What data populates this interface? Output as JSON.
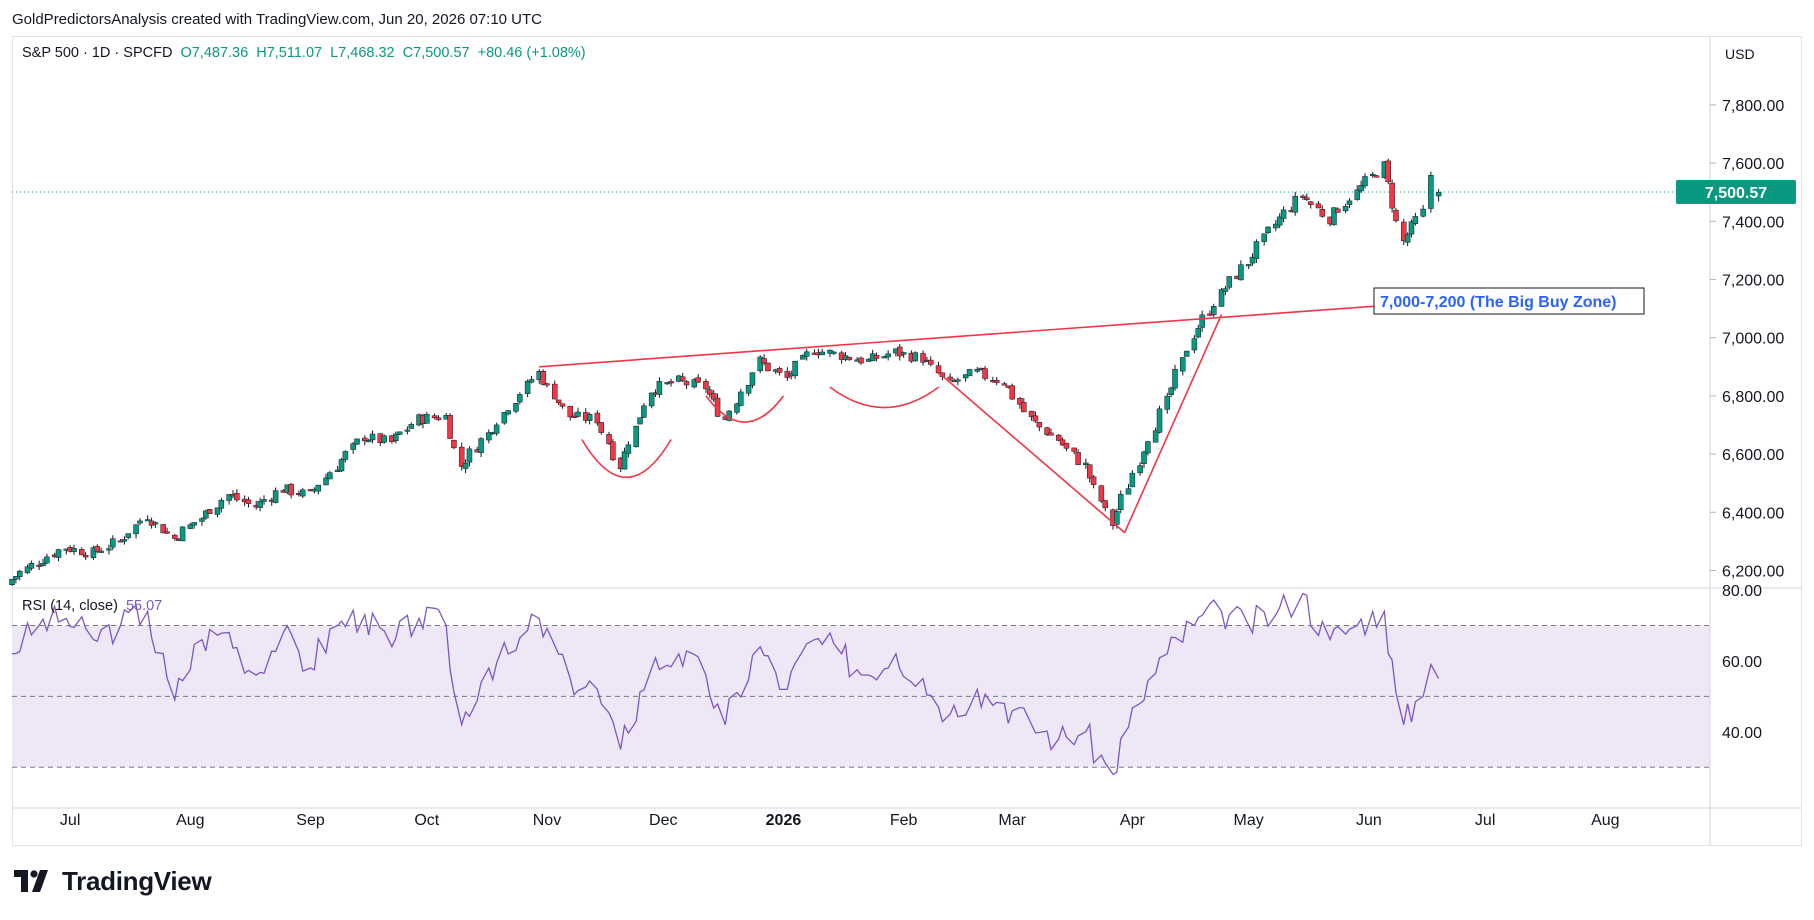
{
  "header": {
    "caption": "GoldPredictorsAnalysis created with TradingView.com, Jun 20, 2026 07:10 UTC"
  },
  "legend": {
    "symbol": "S&P 500 · 1D · SPCFD",
    "open": "O7,487.36",
    "high": "H7,511.07",
    "low": "L7,468.32",
    "close": "C7,500.57",
    "change": "+80.46 (+1.08%)"
  },
  "currency": "USD",
  "rsi_legend": {
    "label": "RSI (14, close)",
    "value": "55.07"
  },
  "brand": {
    "name": "TradingView"
  },
  "colors": {
    "up": "#089981",
    "down": "#f23645",
    "annotation": "#f23645",
    "rsi_line": "#7e57c2",
    "rsi_band": "#ede7f6",
    "zone_text": "#2962ff",
    "last_price_bg": "#089981"
  },
  "chart_data": [
    {
      "type": "candlestick",
      "title": "",
      "ylim": [
        6150,
        7920
      ],
      "yticks": [
        6200,
        6400,
        6600,
        6800,
        7000,
        7200,
        7400,
        7600,
        7800
      ],
      "ytick_labels": [
        "6,200.00",
        "6,400.00",
        "6,600.00",
        "6,800.00",
        "7,000.00",
        "7,200.00",
        "7,400.00",
        "7,600.00",
        "7,800.00"
      ],
      "x_range": [
        "2025-06-16",
        "2026-08-28"
      ],
      "xticks": [
        {
          "date": "2025-07-01",
          "label": "Jul"
        },
        {
          "date": "2025-08-01",
          "label": "Aug"
        },
        {
          "date": "2025-09-01",
          "label": "Sep"
        },
        {
          "date": "2025-10-01",
          "label": "Oct"
        },
        {
          "date": "2025-11-01",
          "label": "Nov"
        },
        {
          "date": "2025-12-01",
          "label": "Dec"
        },
        {
          "date": "2026-01-01",
          "label": "2026"
        },
        {
          "date": "2026-02-01",
          "label": "Feb"
        },
        {
          "date": "2026-03-01",
          "label": "Mar"
        },
        {
          "date": "2026-04-01",
          "label": "Apr"
        },
        {
          "date": "2026-05-01",
          "label": "May"
        },
        {
          "date": "2026-06-01",
          "label": "Jun"
        },
        {
          "date": "2026-07-01",
          "label": "Jul"
        },
        {
          "date": "2026-08-01",
          "label": "Aug"
        }
      ],
      "last_price": 7500.57,
      "last_price_label": "7,500.57",
      "closes": [
        [
          "2025-06-16",
          6170
        ],
        [
          "2025-06-23",
          6230
        ],
        [
          "2025-06-30",
          6280
        ],
        [
          "2025-07-07",
          6260
        ],
        [
          "2025-07-14",
          6300
        ],
        [
          "2025-07-21",
          6390
        ],
        [
          "2025-07-28",
          6310
        ],
        [
          "2025-08-04",
          6380
        ],
        [
          "2025-08-11",
          6460
        ],
        [
          "2025-08-18",
          6420
        ],
        [
          "2025-08-25",
          6480
        ],
        [
          "2025-09-01",
          6460
        ],
        [
          "2025-09-08",
          6560
        ],
        [
          "2025-09-15",
          6660
        ],
        [
          "2025-09-22",
          6640
        ],
        [
          "2025-09-29",
          6720
        ],
        [
          "2025-10-06",
          6730
        ],
        [
          "2025-10-10",
          6560
        ],
        [
          "2025-10-17",
          6670
        ],
        [
          "2025-10-24",
          6790
        ],
        [
          "2025-10-30",
          6880
        ],
        [
          "2025-11-07",
          6730
        ],
        [
          "2025-11-14",
          6720
        ],
        [
          "2025-11-20",
          6560
        ],
        [
          "2025-11-28",
          6820
        ],
        [
          "2025-12-05",
          6850
        ],
        [
          "2025-12-12",
          6830
        ],
        [
          "2025-12-17",
          6720
        ],
        [
          "2025-12-26",
          6920
        ],
        [
          "2026-01-02",
          6860
        ],
        [
          "2026-01-09",
          6960
        ],
        [
          "2026-01-16",
          6940
        ],
        [
          "2026-01-23",
          6920
        ],
        [
          "2026-01-30",
          6950
        ],
        [
          "2026-02-06",
          6930
        ],
        [
          "2026-02-13",
          6840
        ],
        [
          "2026-02-20",
          6880
        ],
        [
          "2026-02-27",
          6850
        ],
        [
          "2026-03-06",
          6720
        ],
        [
          "2026-03-13",
          6650
        ],
        [
          "2026-03-20",
          6560
        ],
        [
          "2026-03-27",
          6360
        ],
        [
          "2026-04-03",
          6580
        ],
        [
          "2026-04-10",
          6780
        ],
        [
          "2026-04-17",
          7010
        ],
        [
          "2026-04-24",
          7150
        ],
        [
          "2026-05-01",
          7260
        ],
        [
          "2026-05-08",
          7390
        ],
        [
          "2026-05-15",
          7490
        ],
        [
          "2026-05-22",
          7410
        ],
        [
          "2026-05-29",
          7500
        ],
        [
          "2026-06-05",
          7590
        ],
        [
          "2026-06-10",
          7330
        ],
        [
          "2026-06-15",
          7430
        ],
        [
          "2026-06-17",
          7560
        ],
        [
          "2026-06-19",
          7500
        ]
      ],
      "annotations": [
        {
          "type": "trendline",
          "from": [
            "2025-10-30",
            6900
          ],
          "to": [
            "2026-06-15",
            7120
          ]
        },
        {
          "type": "trendline",
          "from": [
            "2026-02-10",
            6880
          ],
          "to": [
            "2026-03-30",
            6330
          ]
        },
        {
          "type": "trendline",
          "from": [
            "2026-03-30",
            6330
          ],
          "to": [
            "2026-04-24",
            7080
          ]
        },
        {
          "type": "label",
          "text": "7,000-7,200 (The Big Buy Zone)"
        }
      ]
    },
    {
      "type": "line",
      "title": "RSI (14, close)",
      "ylim": [
        25,
        80
      ],
      "yticks": [
        40,
        60,
        80
      ],
      "ytick_labels": [
        "40.00",
        "60.00",
        "80.00"
      ],
      "bands": [
        30,
        50,
        70
      ],
      "series": [
        {
          "values": [
            [
              "2025-06-16",
              62
            ],
            [
              "2025-06-23",
              70
            ],
            [
              "2025-06-30",
              72
            ],
            [
              "2025-07-07",
              66
            ],
            [
              "2025-07-14",
              70
            ],
            [
              "2025-07-21",
              74
            ],
            [
              "2025-07-28",
              49
            ],
            [
              "2025-08-04",
              66
            ],
            [
              "2025-08-11",
              68
            ],
            [
              "2025-08-18",
              56
            ],
            [
              "2025-08-25",
              68
            ],
            [
              "2025-09-01",
              58
            ],
            [
              "2025-09-08",
              70
            ],
            [
              "2025-09-15",
              73
            ],
            [
              "2025-09-22",
              64
            ],
            [
              "2025-09-29",
              72
            ],
            [
              "2025-10-06",
              70
            ],
            [
              "2025-10-10",
              42
            ],
            [
              "2025-10-17",
              58
            ],
            [
              "2025-10-24",
              63
            ],
            [
              "2025-10-30",
              72
            ],
            [
              "2025-11-07",
              55
            ],
            [
              "2025-11-14",
              52
            ],
            [
              "2025-11-20",
              35
            ],
            [
              "2025-11-28",
              58
            ],
            [
              "2025-12-05",
              62
            ],
            [
              "2025-12-12",
              56
            ],
            [
              "2025-12-17",
              42
            ],
            [
              "2025-12-26",
              64
            ],
            [
              "2026-01-02",
              52
            ],
            [
              "2026-01-09",
              66
            ],
            [
              "2026-01-16",
              62
            ],
            [
              "2026-01-23",
              56
            ],
            [
              "2026-01-30",
              62
            ],
            [
              "2026-02-06",
              55
            ],
            [
              "2026-02-13",
              45
            ],
            [
              "2026-02-20",
              52
            ],
            [
              "2026-02-27",
              48
            ],
            [
              "2026-03-06",
              42
            ],
            [
              "2026-03-13",
              38
            ],
            [
              "2026-03-20",
              40
            ],
            [
              "2026-03-27",
              28
            ],
            [
              "2026-04-03",
              48
            ],
            [
              "2026-04-10",
              62
            ],
            [
              "2026-04-17",
              70
            ],
            [
              "2026-04-24",
              74
            ],
            [
              "2026-05-01",
              70
            ],
            [
              "2026-05-08",
              73
            ],
            [
              "2026-05-15",
              79
            ],
            [
              "2026-05-22",
              66
            ],
            [
              "2026-05-29",
              70
            ],
            [
              "2026-06-05",
              74
            ],
            [
              "2026-06-10",
              42
            ],
            [
              "2026-06-15",
              50
            ],
            [
              "2026-06-17",
              59
            ],
            [
              "2026-06-19",
              55.07
            ]
          ]
        }
      ]
    }
  ]
}
